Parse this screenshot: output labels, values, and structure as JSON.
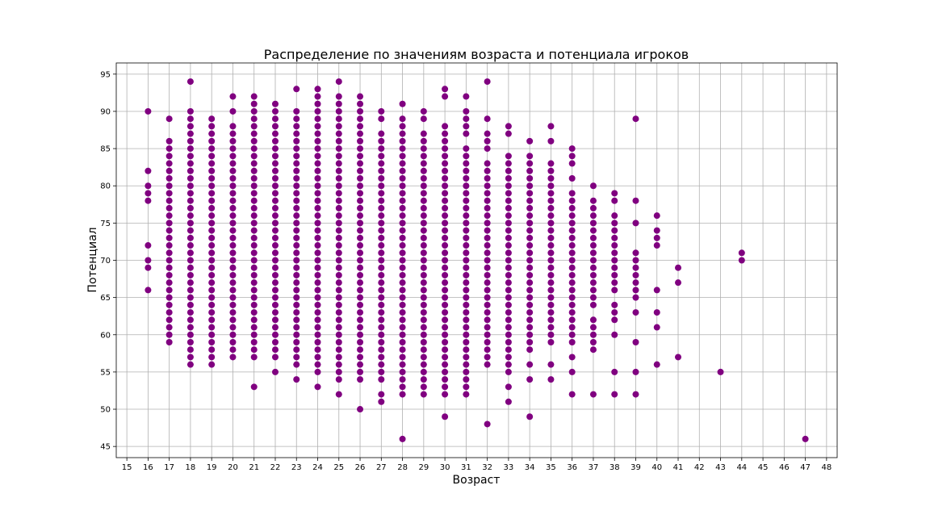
{
  "chart_data": {
    "type": "scatter",
    "title": "Распределение по значениям возраста и потенциала игроков",
    "xlabel": "Возраст",
    "ylabel": "Потенциал",
    "xlim": [
      14.5,
      48.5
    ],
    "ylim": [
      43.5,
      96.5
    ],
    "xticks": [
      15,
      16,
      17,
      18,
      19,
      20,
      21,
      22,
      23,
      24,
      25,
      26,
      27,
      28,
      29,
      30,
      31,
      32,
      33,
      34,
      35,
      36,
      37,
      38,
      39,
      40,
      41,
      42,
      43,
      44,
      45,
      46,
      47,
      48
    ],
    "yticks": [
      45,
      50,
      55,
      60,
      65,
      70,
      75,
      80,
      85,
      90,
      95
    ],
    "grid": true,
    "marker_color": "#800080",
    "points_by_age": [
      {
        "age": 16,
        "potentials": [
          66,
          69,
          70,
          72,
          78,
          79,
          80,
          82,
          90
        ]
      },
      {
        "age": 17,
        "potentials": [
          59,
          60,
          61,
          62,
          63,
          64,
          65,
          66,
          67,
          68,
          69,
          70,
          71,
          72,
          73,
          74,
          75,
          76,
          77,
          78,
          79,
          80,
          81,
          82,
          83,
          84,
          85,
          86,
          89
        ]
      },
      {
        "age": 18,
        "potentials": [
          56,
          57,
          58,
          59,
          60,
          61,
          62,
          63,
          64,
          65,
          66,
          67,
          68,
          69,
          70,
          71,
          72,
          73,
          74,
          75,
          76,
          77,
          78,
          79,
          80,
          81,
          82,
          83,
          84,
          85,
          86,
          87,
          88,
          89,
          90,
          94
        ]
      },
      {
        "age": 19,
        "potentials": [
          56,
          57,
          58,
          59,
          60,
          61,
          62,
          63,
          64,
          65,
          66,
          67,
          68,
          69,
          70,
          71,
          72,
          73,
          74,
          75,
          76,
          77,
          78,
          79,
          80,
          81,
          82,
          83,
          84,
          85,
          86,
          87,
          88,
          89
        ]
      },
      {
        "age": 20,
        "potentials": [
          57,
          58,
          59,
          60,
          61,
          62,
          63,
          64,
          65,
          66,
          67,
          68,
          69,
          70,
          71,
          72,
          73,
          74,
          75,
          76,
          77,
          78,
          79,
          80,
          81,
          82,
          83,
          84,
          85,
          86,
          87,
          88,
          90,
          92
        ]
      },
      {
        "age": 21,
        "potentials": [
          53,
          57,
          58,
          59,
          60,
          61,
          62,
          63,
          64,
          65,
          66,
          67,
          68,
          69,
          70,
          71,
          72,
          73,
          74,
          75,
          76,
          77,
          78,
          79,
          80,
          81,
          82,
          83,
          84,
          85,
          86,
          87,
          88,
          89,
          90,
          91,
          92
        ]
      },
      {
        "age": 22,
        "potentials": [
          55,
          57,
          58,
          59,
          60,
          61,
          62,
          63,
          64,
          65,
          66,
          67,
          68,
          69,
          70,
          71,
          72,
          73,
          74,
          75,
          76,
          77,
          78,
          79,
          80,
          81,
          82,
          83,
          84,
          85,
          86,
          87,
          88,
          89,
          90,
          91
        ]
      },
      {
        "age": 23,
        "potentials": [
          54,
          56,
          57,
          58,
          59,
          60,
          61,
          62,
          63,
          64,
          65,
          66,
          67,
          68,
          69,
          70,
          71,
          72,
          73,
          74,
          75,
          76,
          77,
          78,
          79,
          80,
          81,
          82,
          83,
          84,
          85,
          86,
          87,
          88,
          89,
          90,
          93
        ]
      },
      {
        "age": 24,
        "potentials": [
          53,
          55,
          56,
          57,
          58,
          59,
          60,
          61,
          62,
          63,
          64,
          65,
          66,
          67,
          68,
          69,
          70,
          71,
          72,
          73,
          74,
          75,
          76,
          77,
          78,
          79,
          80,
          81,
          82,
          83,
          84,
          85,
          86,
          87,
          88,
          89,
          90,
          91,
          92,
          93
        ]
      },
      {
        "age": 25,
        "potentials": [
          52,
          54,
          55,
          56,
          57,
          58,
          59,
          60,
          61,
          62,
          63,
          64,
          65,
          66,
          67,
          68,
          69,
          70,
          71,
          72,
          73,
          74,
          75,
          76,
          77,
          78,
          79,
          80,
          81,
          82,
          83,
          84,
          85,
          86,
          87,
          88,
          89,
          90,
          91,
          92,
          94
        ]
      },
      {
        "age": 26,
        "potentials": [
          50,
          54,
          55,
          56,
          57,
          58,
          59,
          60,
          61,
          62,
          63,
          64,
          65,
          66,
          67,
          68,
          69,
          70,
          71,
          72,
          73,
          74,
          75,
          76,
          77,
          78,
          79,
          80,
          81,
          82,
          83,
          84,
          85,
          86,
          87,
          88,
          89,
          90,
          91,
          92
        ]
      },
      {
        "age": 27,
        "potentials": [
          51,
          52,
          54,
          55,
          56,
          57,
          58,
          59,
          60,
          61,
          62,
          63,
          64,
          65,
          66,
          67,
          68,
          69,
          70,
          71,
          72,
          73,
          74,
          75,
          76,
          77,
          78,
          79,
          80,
          81,
          82,
          83,
          84,
          85,
          86,
          87,
          89,
          90
        ]
      },
      {
        "age": 28,
        "potentials": [
          46,
          52,
          53,
          54,
          55,
          56,
          57,
          58,
          59,
          60,
          61,
          62,
          63,
          64,
          65,
          66,
          67,
          68,
          69,
          70,
          71,
          72,
          73,
          74,
          75,
          76,
          77,
          78,
          79,
          80,
          81,
          82,
          83,
          84,
          85,
          86,
          87,
          88,
          89,
          91
        ]
      },
      {
        "age": 29,
        "potentials": [
          52,
          53,
          54,
          55,
          56,
          57,
          58,
          59,
          60,
          61,
          62,
          63,
          64,
          65,
          66,
          67,
          68,
          69,
          70,
          71,
          72,
          73,
          74,
          75,
          76,
          77,
          78,
          79,
          80,
          81,
          82,
          83,
          84,
          85,
          86,
          87,
          89,
          90
        ]
      },
      {
        "age": 30,
        "potentials": [
          49,
          52,
          53,
          54,
          55,
          56,
          57,
          58,
          59,
          60,
          61,
          62,
          63,
          64,
          65,
          66,
          67,
          68,
          69,
          70,
          71,
          72,
          73,
          74,
          75,
          76,
          77,
          78,
          79,
          80,
          81,
          82,
          83,
          84,
          85,
          86,
          87,
          88,
          92,
          93
        ]
      },
      {
        "age": 31,
        "potentials": [
          52,
          53,
          54,
          55,
          56,
          57,
          58,
          59,
          60,
          61,
          62,
          63,
          64,
          65,
          66,
          67,
          68,
          69,
          70,
          71,
          72,
          73,
          74,
          75,
          76,
          77,
          78,
          79,
          80,
          81,
          82,
          83,
          84,
          85,
          87,
          88,
          89,
          90,
          92
        ]
      },
      {
        "age": 32,
        "potentials": [
          48,
          56,
          57,
          58,
          59,
          60,
          61,
          62,
          63,
          64,
          65,
          66,
          67,
          68,
          69,
          70,
          71,
          72,
          73,
          74,
          75,
          76,
          77,
          78,
          79,
          80,
          81,
          82,
          83,
          85,
          86,
          87,
          89,
          94
        ]
      },
      {
        "age": 33,
        "potentials": [
          51,
          53,
          55,
          56,
          57,
          58,
          59,
          60,
          61,
          62,
          63,
          64,
          65,
          66,
          67,
          68,
          69,
          70,
          71,
          72,
          73,
          74,
          75,
          76,
          77,
          78,
          79,
          80,
          81,
          82,
          83,
          84,
          87,
          88
        ]
      },
      {
        "age": 34,
        "potentials": [
          49,
          54,
          56,
          58,
          59,
          60,
          61,
          62,
          63,
          64,
          65,
          66,
          67,
          68,
          69,
          70,
          71,
          72,
          73,
          74,
          75,
          76,
          77,
          78,
          79,
          80,
          81,
          82,
          83,
          84,
          86
        ]
      },
      {
        "age": 35,
        "potentials": [
          54,
          56,
          59,
          60,
          61,
          62,
          63,
          64,
          65,
          66,
          67,
          68,
          69,
          70,
          71,
          72,
          73,
          74,
          75,
          76,
          77,
          78,
          79,
          80,
          81,
          82,
          83,
          86,
          88
        ]
      },
      {
        "age": 36,
        "potentials": [
          52,
          55,
          57,
          59,
          60,
          61,
          62,
          63,
          64,
          65,
          66,
          67,
          68,
          69,
          70,
          71,
          72,
          73,
          74,
          75,
          76,
          77,
          78,
          79,
          81,
          83,
          84,
          85
        ]
      },
      {
        "age": 37,
        "potentials": [
          52,
          58,
          59,
          60,
          61,
          62,
          64,
          65,
          66,
          67,
          68,
          69,
          70,
          71,
          72,
          73,
          74,
          75,
          76,
          77,
          78,
          80
        ]
      },
      {
        "age": 38,
        "potentials": [
          52,
          55,
          60,
          62,
          63,
          64,
          66,
          67,
          68,
          69,
          70,
          71,
          72,
          73,
          74,
          75,
          76,
          78,
          79
        ]
      },
      {
        "age": 39,
        "potentials": [
          52,
          55,
          59,
          63,
          65,
          66,
          67,
          68,
          69,
          70,
          71,
          75,
          78,
          89
        ]
      },
      {
        "age": 40,
        "potentials": [
          56,
          61,
          63,
          66,
          72,
          73,
          74,
          76
        ]
      },
      {
        "age": 41,
        "potentials": [
          57,
          67,
          69
        ]
      },
      {
        "age": 43,
        "potentials": [
          55
        ]
      },
      {
        "age": 44,
        "potentials": [
          70,
          71
        ]
      },
      {
        "age": 47,
        "potentials": [
          46
        ]
      }
    ]
  }
}
